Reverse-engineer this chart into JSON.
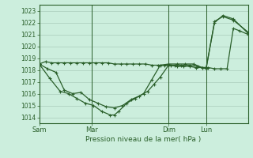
{
  "bg_color": "#cceedd",
  "line_color": "#2a5f2a",
  "grid_color": "#aaccbb",
  "xlabel": "Pression niveau de la mer( hPa )",
  "ylim": [
    1013.5,
    1023.5
  ],
  "yticks": [
    1014,
    1015,
    1016,
    1017,
    1018,
    1019,
    1020,
    1021,
    1022,
    1023
  ],
  "xtick_labels": [
    "Sam",
    "Mar",
    "Dim",
    "Lun"
  ],
  "xtick_positions": [
    0.0,
    0.25,
    0.62,
    0.8
  ],
  "vline_positions": [
    0.0,
    0.25,
    0.62,
    0.8
  ],
  "series1_x": [
    0.0,
    0.03,
    0.06,
    0.09,
    0.12,
    0.15,
    0.18,
    0.21,
    0.24,
    0.27,
    0.3,
    0.33,
    0.36,
    0.39,
    0.42,
    0.45,
    0.48,
    0.51,
    0.54,
    0.57,
    0.6,
    0.63,
    0.66,
    0.69,
    0.72,
    0.75,
    0.78,
    0.81,
    0.84,
    0.87,
    0.9,
    0.93,
    0.96,
    1.0
  ],
  "series1_y": [
    1018.5,
    1018.7,
    1018.6,
    1018.6,
    1018.6,
    1018.6,
    1018.6,
    1018.6,
    1018.6,
    1018.6,
    1018.6,
    1018.6,
    1018.5,
    1018.5,
    1018.5,
    1018.5,
    1018.5,
    1018.5,
    1018.4,
    1018.4,
    1018.4,
    1018.4,
    1018.3,
    1018.3,
    1018.3,
    1018.2,
    1018.2,
    1018.2,
    1018.1,
    1018.1,
    1018.1,
    1021.5,
    1021.3,
    1021.0
  ],
  "series2_x": [
    0.0,
    0.04,
    0.08,
    0.12,
    0.16,
    0.2,
    0.24,
    0.28,
    0.32,
    0.36,
    0.4,
    0.44,
    0.48,
    0.52,
    0.55,
    0.58,
    0.62,
    0.65,
    0.68,
    0.72,
    0.76,
    0.8,
    0.84,
    0.88,
    0.93,
    1.0
  ],
  "series2_y": [
    1018.5,
    1018.1,
    1017.8,
    1016.3,
    1016.0,
    1016.1,
    1015.5,
    1015.2,
    1014.9,
    1014.8,
    1015.0,
    1015.5,
    1015.8,
    1016.2,
    1016.8,
    1017.4,
    1018.4,
    1018.4,
    1018.4,
    1018.4,
    1018.3,
    1018.1,
    1022.1,
    1022.5,
    1022.2,
    1021.2
  ],
  "series3_x": [
    0.0,
    0.05,
    0.1,
    0.14,
    0.18,
    0.22,
    0.26,
    0.3,
    0.34,
    0.36,
    0.38,
    0.42,
    0.46,
    0.5,
    0.54,
    0.58,
    0.62,
    0.66,
    0.7,
    0.74,
    0.78,
    0.8,
    0.84,
    0.88,
    0.93,
    1.0
  ],
  "series3_y": [
    1018.5,
    1017.3,
    1016.2,
    1016.0,
    1015.6,
    1015.2,
    1015.0,
    1014.5,
    1014.2,
    1014.2,
    1014.5,
    1015.2,
    1015.6,
    1016.0,
    1017.2,
    1018.4,
    1018.5,
    1018.5,
    1018.5,
    1018.5,
    1018.2,
    1018.2,
    1022.0,
    1022.6,
    1022.3,
    1021.1
  ],
  "xlim": [
    0.0,
    1.0
  ]
}
